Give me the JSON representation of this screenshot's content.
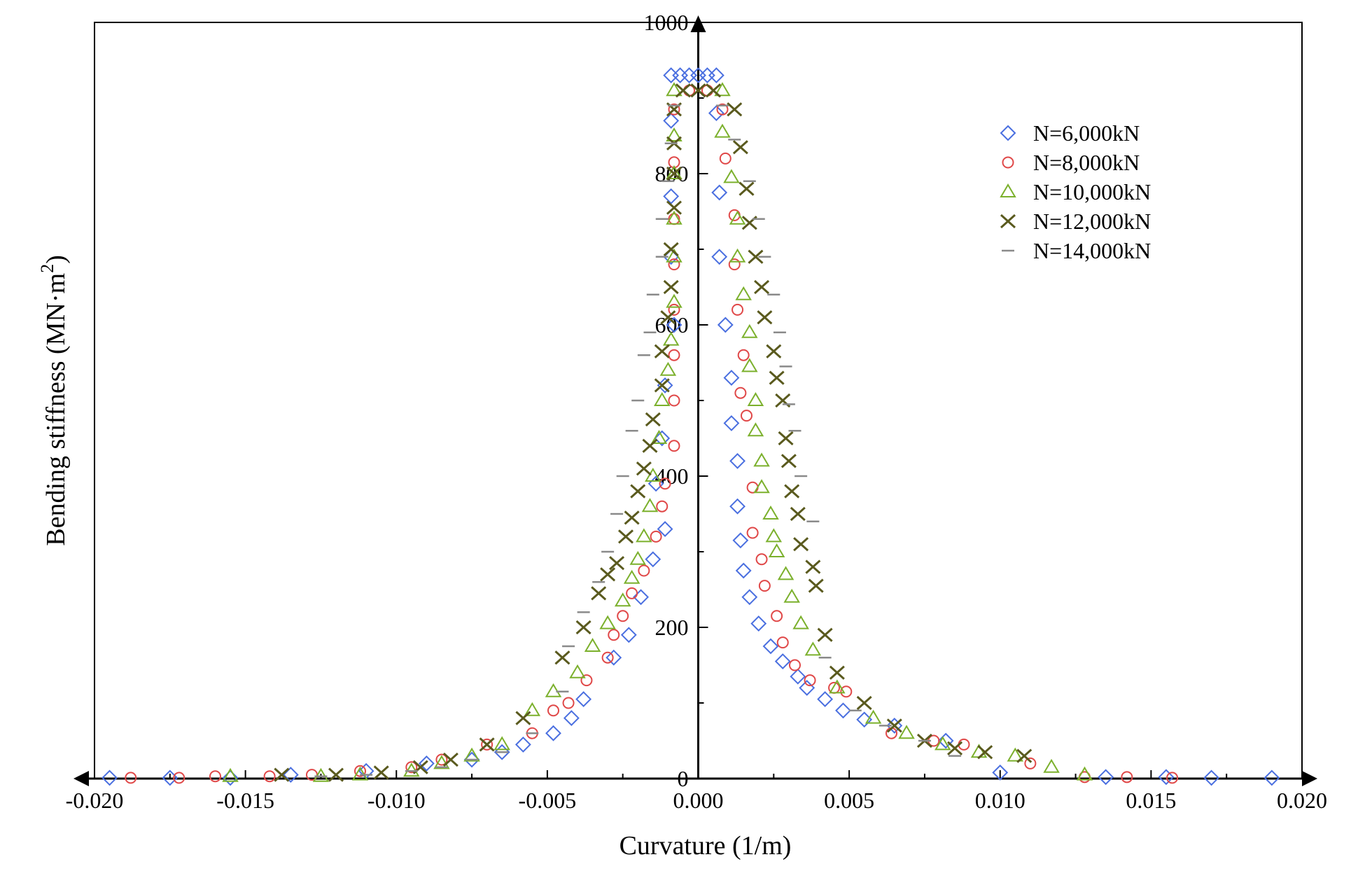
{
  "chart_data": {
    "type": "scatter",
    "title": "",
    "xlabel": "Curvature (1/m)",
    "ylabel_main": "Bending stiffness (MN·m",
    "ylabel_sup": "2",
    "ylabel_close": ")",
    "xlim": [
      -0.02,
      0.02
    ],
    "ylim": [
      0,
      1000
    ],
    "xticks": [
      "-0.020",
      "-0.015",
      "-0.010",
      "-0.005",
      "0.000",
      "0.005",
      "0.010",
      "0.015",
      "0.020"
    ],
    "yticks": [
      "0",
      "200",
      "400",
      "600",
      "800",
      "1000"
    ],
    "legend_position": "top-right",
    "series": [
      {
        "name": "N=6,000kN",
        "marker": "diamond",
        "color": "#4a6fe0",
        "points": [
          [
            -0.0195,
            1
          ],
          [
            -0.0175,
            1
          ],
          [
            -0.0155,
            1
          ],
          [
            -0.0135,
            5
          ],
          [
            -0.011,
            10
          ],
          [
            -0.009,
            20
          ],
          [
            -0.0075,
            25
          ],
          [
            -0.0065,
            35
          ],
          [
            -0.0058,
            45
          ],
          [
            -0.0048,
            60
          ],
          [
            -0.0042,
            80
          ],
          [
            -0.0038,
            105
          ],
          [
            -0.0028,
            160
          ],
          [
            -0.0023,
            190
          ],
          [
            -0.0019,
            240
          ],
          [
            -0.0015,
            290
          ],
          [
            -0.0011,
            330
          ],
          [
            -0.0014,
            390
          ],
          [
            -0.0012,
            450
          ],
          [
            -0.0011,
            520
          ],
          [
            -0.0008,
            600
          ],
          [
            -0.0009,
            690
          ],
          [
            -0.0009,
            770
          ],
          [
            -0.0009,
            870
          ],
          [
            -0.0009,
            930
          ],
          [
            -0.0006,
            930
          ],
          [
            -0.0003,
            930
          ],
          [
            0.0,
            930
          ],
          [
            0.0003,
            930
          ],
          [
            0.0006,
            930
          ],
          [
            0.0006,
            880
          ],
          [
            0.0007,
            775
          ],
          [
            0.0007,
            690
          ],
          [
            0.0009,
            600
          ],
          [
            0.0011,
            530
          ],
          [
            0.0011,
            470
          ],
          [
            0.0013,
            420
          ],
          [
            0.0013,
            360
          ],
          [
            0.0014,
            315
          ],
          [
            0.0015,
            275
          ],
          [
            0.0017,
            240
          ],
          [
            0.002,
            205
          ],
          [
            0.0024,
            175
          ],
          [
            0.0028,
            155
          ],
          [
            0.0033,
            135
          ],
          [
            0.0036,
            120
          ],
          [
            0.0042,
            105
          ],
          [
            0.0048,
            90
          ],
          [
            0.0055,
            78
          ],
          [
            0.0065,
            70
          ],
          [
            0.0082,
            50
          ],
          [
            0.01,
            8
          ],
          [
            0.0135,
            2
          ],
          [
            0.0155,
            2
          ],
          [
            0.017,
            1
          ],
          [
            0.019,
            1
          ]
        ]
      },
      {
        "name": "N=8,000kN",
        "marker": "circle",
        "color": "#e04848",
        "points": [
          [
            -0.0188,
            1
          ],
          [
            -0.0172,
            1
          ],
          [
            -0.016,
            3
          ],
          [
            -0.0142,
            3
          ],
          [
            -0.0128,
            5
          ],
          [
            -0.0112,
            10
          ],
          [
            -0.0095,
            15
          ],
          [
            -0.0085,
            25
          ],
          [
            -0.007,
            45
          ],
          [
            -0.0055,
            60
          ],
          [
            -0.0048,
            90
          ],
          [
            -0.0043,
            100
          ],
          [
            -0.0037,
            130
          ],
          [
            -0.003,
            160
          ],
          [
            -0.0028,
            190
          ],
          [
            -0.0025,
            215
          ],
          [
            -0.0022,
            245
          ],
          [
            -0.0018,
            275
          ],
          [
            -0.0014,
            320
          ],
          [
            -0.0012,
            360
          ],
          [
            -0.0011,
            390
          ],
          [
            -0.0008,
            440
          ],
          [
            -0.0008,
            500
          ],
          [
            -0.0008,
            560
          ],
          [
            -0.0008,
            620
          ],
          [
            -0.0008,
            680
          ],
          [
            -0.0008,
            740
          ],
          [
            -0.0008,
            815
          ],
          [
            -0.0008,
            885
          ],
          [
            -0.0003,
            910
          ],
          [
            0.0003,
            910
          ],
          [
            0.0008,
            885
          ],
          [
            0.0009,
            820
          ],
          [
            0.0012,
            745
          ],
          [
            0.0012,
            680
          ],
          [
            0.0013,
            620
          ],
          [
            0.0015,
            560
          ],
          [
            0.0014,
            510
          ],
          [
            0.0016,
            480
          ],
          [
            0.0018,
            385
          ],
          [
            0.0018,
            325
          ],
          [
            0.0021,
            290
          ],
          [
            0.0022,
            255
          ],
          [
            0.0026,
            215
          ],
          [
            0.0028,
            180
          ],
          [
            0.0032,
            150
          ],
          [
            0.0037,
            130
          ],
          [
            0.0045,
            120
          ],
          [
            0.0049,
            115
          ],
          [
            0.0064,
            60
          ],
          [
            0.0078,
            50
          ],
          [
            0.0088,
            45
          ],
          [
            0.011,
            20
          ],
          [
            0.0128,
            2
          ],
          [
            0.0142,
            2
          ],
          [
            0.0157,
            1
          ]
        ]
      },
      {
        "name": "N=10,000kN",
        "marker": "triangle",
        "color": "#7bb02c",
        "points": [
          [
            -0.0155,
            3
          ],
          [
            -0.0125,
            3
          ],
          [
            -0.0112,
            5
          ],
          [
            -0.0095,
            10
          ],
          [
            -0.0085,
            20
          ],
          [
            -0.0075,
            30
          ],
          [
            -0.0065,
            45
          ],
          [
            -0.0055,
            90
          ],
          [
            -0.0048,
            115
          ],
          [
            -0.004,
            140
          ],
          [
            -0.0035,
            175
          ],
          [
            -0.003,
            205
          ],
          [
            -0.0025,
            235
          ],
          [
            -0.0022,
            265
          ],
          [
            -0.002,
            290
          ],
          [
            -0.0018,
            320
          ],
          [
            -0.0016,
            360
          ],
          [
            -0.0015,
            400
          ],
          [
            -0.0013,
            450
          ],
          [
            -0.0012,
            500
          ],
          [
            -0.001,
            540
          ],
          [
            -0.0009,
            580
          ],
          [
            -0.0008,
            630
          ],
          [
            -0.0008,
            690
          ],
          [
            -0.0008,
            740
          ],
          [
            -0.0008,
            800
          ],
          [
            -0.0008,
            850
          ],
          [
            -0.0008,
            910
          ],
          [
            0.0008,
            910
          ],
          [
            0.0008,
            855
          ],
          [
            0.0011,
            795
          ],
          [
            0.0013,
            740
          ],
          [
            0.0013,
            690
          ],
          [
            0.0015,
            640
          ],
          [
            0.0017,
            590
          ],
          [
            0.0017,
            545
          ],
          [
            0.0019,
            500
          ],
          [
            0.0019,
            460
          ],
          [
            0.0021,
            420
          ],
          [
            0.0021,
            385
          ],
          [
            0.0024,
            350
          ],
          [
            0.0025,
            320
          ],
          [
            0.0026,
            300
          ],
          [
            0.0029,
            270
          ],
          [
            0.0031,
            240
          ],
          [
            0.0034,
            205
          ],
          [
            0.0038,
            170
          ],
          [
            0.0046,
            120
          ],
          [
            0.0058,
            80
          ],
          [
            0.0069,
            60
          ],
          [
            0.0081,
            45
          ],
          [
            0.0093,
            35
          ],
          [
            0.0105,
            30
          ],
          [
            0.0117,
            15
          ],
          [
            0.0128,
            5
          ]
        ]
      },
      {
        "name": "N=12,000kN",
        "marker": "x",
        "color": "#5a5a1e",
        "points": [
          [
            -0.0138,
            5
          ],
          [
            -0.012,
            5
          ],
          [
            -0.0105,
            8
          ],
          [
            -0.0092,
            15
          ],
          [
            -0.0082,
            25
          ],
          [
            -0.007,
            45
          ],
          [
            -0.0058,
            80
          ],
          [
            -0.0045,
            160
          ],
          [
            -0.0038,
            200
          ],
          [
            -0.0033,
            245
          ],
          [
            -0.003,
            270
          ],
          [
            -0.0027,
            285
          ],
          [
            -0.0024,
            320
          ],
          [
            -0.0022,
            345
          ],
          [
            -0.002,
            380
          ],
          [
            -0.0018,
            410
          ],
          [
            -0.0016,
            440
          ],
          [
            -0.0015,
            475
          ],
          [
            -0.0012,
            520
          ],
          [
            -0.0012,
            565
          ],
          [
            -0.001,
            610
          ],
          [
            -0.0009,
            650
          ],
          [
            -0.0009,
            700
          ],
          [
            -0.0008,
            755
          ],
          [
            -0.0008,
            800
          ],
          [
            -0.0008,
            840
          ],
          [
            -0.0008,
            885
          ],
          [
            -0.0005,
            910
          ],
          [
            0.0,
            910
          ],
          [
            0.0005,
            910
          ],
          [
            0.0012,
            885
          ],
          [
            0.0014,
            835
          ],
          [
            0.0016,
            780
          ],
          [
            0.0017,
            735
          ],
          [
            0.0019,
            690
          ],
          [
            0.0021,
            650
          ],
          [
            0.0022,
            610
          ],
          [
            0.0025,
            565
          ],
          [
            0.0026,
            530
          ],
          [
            0.0028,
            500
          ],
          [
            0.0029,
            450
          ],
          [
            0.003,
            420
          ],
          [
            0.0031,
            380
          ],
          [
            0.0033,
            350
          ],
          [
            0.0034,
            310
          ],
          [
            0.0038,
            280
          ],
          [
            0.0039,
            255
          ],
          [
            0.0042,
            190
          ],
          [
            0.0046,
            140
          ],
          [
            0.0055,
            100
          ],
          [
            0.0065,
            70
          ],
          [
            0.0075,
            50
          ],
          [
            0.0085,
            40
          ],
          [
            0.0095,
            35
          ],
          [
            0.0108,
            30
          ]
        ]
      },
      {
        "name": "N=14,000kN",
        "marker": "dash",
        "color": "#8a8a8a",
        "points": [
          [
            -0.0125,
            3
          ],
          [
            -0.011,
            5
          ],
          [
            -0.0095,
            10
          ],
          [
            -0.0085,
            15
          ],
          [
            -0.0075,
            25
          ],
          [
            -0.0065,
            35
          ],
          [
            -0.0055,
            60
          ],
          [
            -0.0045,
            115
          ],
          [
            -0.0043,
            175
          ],
          [
            -0.0038,
            220
          ],
          [
            -0.0033,
            260
          ],
          [
            -0.003,
            300
          ],
          [
            -0.0027,
            350
          ],
          [
            -0.0025,
            400
          ],
          [
            -0.0022,
            460
          ],
          [
            -0.002,
            500
          ],
          [
            -0.0018,
            560
          ],
          [
            -0.0016,
            590
          ],
          [
            -0.0015,
            640
          ],
          [
            -0.0012,
            690
          ],
          [
            -0.0012,
            740
          ],
          [
            -0.001,
            790
          ],
          [
            -0.0009,
            840
          ],
          [
            -0.0008,
            890
          ],
          [
            0.0008,
            890
          ],
          [
            0.0012,
            845
          ],
          [
            0.0017,
            790
          ],
          [
            0.002,
            740
          ],
          [
            0.0022,
            690
          ],
          [
            0.0025,
            640
          ],
          [
            0.0027,
            590
          ],
          [
            0.0029,
            545
          ],
          [
            0.003,
            495
          ],
          [
            0.0032,
            460
          ],
          [
            0.0034,
            400
          ],
          [
            0.0038,
            340
          ],
          [
            0.0042,
            160
          ],
          [
            0.0052,
            90
          ],
          [
            0.0062,
            70
          ],
          [
            0.0075,
            50
          ],
          [
            0.0085,
            30
          ]
        ]
      }
    ]
  }
}
